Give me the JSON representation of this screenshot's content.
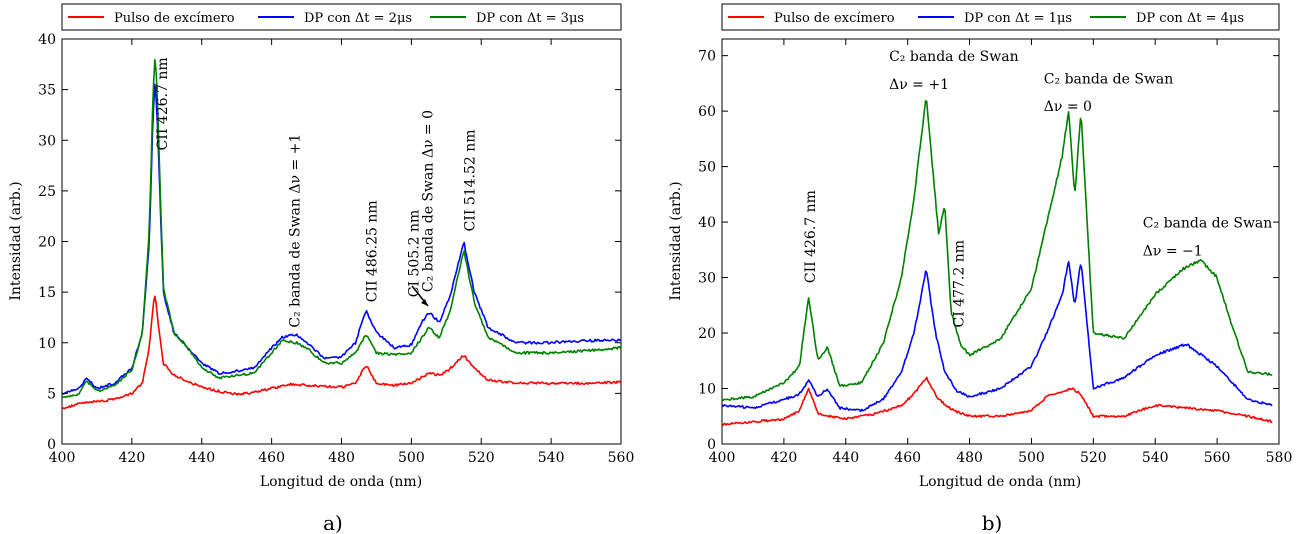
{
  "chart_data": [
    {
      "type": "line",
      "caption": "a)",
      "xlabel": "Longitud de onda (nm)",
      "ylabel": "Intensidad (arb.)",
      "xlim": [
        400,
        560
      ],
      "ylim": [
        0,
        40
      ],
      "xticks": [
        400,
        420,
        440,
        460,
        480,
        500,
        520,
        540,
        560
      ],
      "yticks": [
        0,
        5,
        10,
        15,
        20,
        25,
        30,
        35,
        40
      ],
      "legend_position": "top",
      "legend": [
        "Pulso de excímero",
        "DP con Δt = 2μs",
        "DP con Δt = 3μs"
      ],
      "annotations": [
        {
          "text": "CII 426.7 nm",
          "x": 430,
          "y": 29,
          "rotation": "vertical"
        },
        {
          "text": "C₂ banda de Swan Δν = +1",
          "x": 468,
          "y": 11.5,
          "rotation": "vertical"
        },
        {
          "text": "CII 486.25 nm",
          "x": 490,
          "y": 14,
          "rotation": "vertical"
        },
        {
          "text": "CI 505.2 nm",
          "x": 502,
          "y": 14.5,
          "rotation": "vertical"
        },
        {
          "text": "C₂ banda de Swan Δν = 0",
          "x": 506,
          "y": 15,
          "rotation": "vertical"
        },
        {
          "text": "CII 514.52 nm",
          "x": 518,
          "y": 21,
          "rotation": "vertical"
        }
      ],
      "series": [
        {
          "name": "Pulso de excímero",
          "color": "#ff0000",
          "x": [
            400,
            405,
            410,
            415,
            420,
            423,
            425,
            426,
            426.7,
            427.5,
            429,
            432,
            436,
            440,
            445,
            450,
            455,
            460,
            465,
            470,
            475,
            480,
            484,
            487,
            490,
            495,
            500,
            505,
            508,
            511,
            515,
            518,
            522,
            530,
            540,
            550,
            560
          ],
          "y": [
            3.5,
            4.0,
            4.2,
            4.4,
            5.0,
            6.0,
            9.5,
            13.5,
            14.7,
            12.0,
            8.0,
            6.8,
            6.2,
            5.6,
            5.2,
            4.9,
            5.1,
            5.5,
            5.9,
            5.8,
            5.7,
            5.6,
            6.0,
            7.8,
            6.0,
            5.8,
            6.0,
            7.0,
            6.8,
            7.4,
            8.8,
            7.5,
            6.3,
            6.0,
            6.0,
            6.0,
            6.1
          ]
        },
        {
          "name": "DP con Δt = 2μs",
          "color": "#0000ff",
          "x": [
            400,
            405,
            407,
            410,
            415,
            420,
            423,
            425,
            426,
            426.7,
            427.5,
            429,
            432,
            436,
            440,
            445,
            450,
            455,
            460,
            463,
            467,
            470,
            475,
            480,
            484,
            487,
            490,
            495,
            500,
            503,
            505,
            508,
            511,
            515,
            518,
            522,
            530,
            540,
            550,
            560
          ],
          "y": [
            5.0,
            5.5,
            6.5,
            5.5,
            6.0,
            7.5,
            11.0,
            20.0,
            32.0,
            36.0,
            30.0,
            15.0,
            11.0,
            9.5,
            8.0,
            7.0,
            7.2,
            7.5,
            9.5,
            10.5,
            10.8,
            10.0,
            8.5,
            8.6,
            10.0,
            13.2,
            11.0,
            9.5,
            9.8,
            12.0,
            13.0,
            12.0,
            14.5,
            20.0,
            15.0,
            11.5,
            10.0,
            10.0,
            10.2,
            10.3
          ]
        },
        {
          "name": "DP con Δt = 3μs",
          "color": "#008000",
          "x": [
            400,
            405,
            407,
            410,
            415,
            420,
            423,
            425,
            426,
            426.7,
            427.5,
            429,
            432,
            436,
            440,
            445,
            450,
            455,
            460,
            463,
            467,
            470,
            475,
            480,
            484,
            487,
            490,
            495,
            500,
            503,
            505,
            508,
            511,
            515,
            518,
            522,
            530,
            540,
            550,
            560
          ],
          "y": [
            4.5,
            5.0,
            6.2,
            5.2,
            5.8,
            7.3,
            11.0,
            21.0,
            34.0,
            38.8,
            32.0,
            15.5,
            11.0,
            9.5,
            7.5,
            6.5,
            6.8,
            7.0,
            9.0,
            10.2,
            10.0,
            9.5,
            8.0,
            8.0,
            9.0,
            10.8,
            9.0,
            8.8,
            9.0,
            10.5,
            11.5,
            10.5,
            13.0,
            19.2,
            14.0,
            10.5,
            9.0,
            9.0,
            9.2,
            9.5
          ]
        }
      ]
    },
    {
      "type": "line",
      "caption": "b)",
      "xlabel": "Longitud de onda (nm)",
      "ylabel": "Intensidad (arb.)",
      "xlim": [
        400,
        580
      ],
      "ylim": [
        0,
        73
      ],
      "xticks": [
        400,
        420,
        440,
        460,
        480,
        500,
        520,
        540,
        560,
        580
      ],
      "yticks": [
        0,
        10,
        20,
        30,
        40,
        50,
        60,
        70
      ],
      "legend_position": "top",
      "legend": [
        "Pulso de excímero",
        "DP con Δt = 1μs",
        "DP con Δt = 4μs"
      ],
      "annotations": [
        {
          "text": "CII 426.7 nm",
          "x": 430,
          "y": 29,
          "rotation": "vertical"
        },
        {
          "text": "C₂ banda de Swan",
          "x": 454,
          "y": 69,
          "rotation": "horizontal"
        },
        {
          "text": "Δν = +1",
          "x": 454,
          "y": 64,
          "rotation": "horizontal"
        },
        {
          "text": "CI 477.2 nm",
          "x": 478,
          "y": 21,
          "rotation": "vertical"
        },
        {
          "text": "C₂ banda de Swan",
          "x": 504,
          "y": 65,
          "rotation": "horizontal"
        },
        {
          "text": "Δν = 0",
          "x": 504,
          "y": 60,
          "rotation": "horizontal"
        },
        {
          "text": "C₂ banda de Swan",
          "x": 536,
          "y": 39,
          "rotation": "horizontal"
        },
        {
          "text": "Δν = −1",
          "x": 536,
          "y": 34,
          "rotation": "horizontal"
        }
      ],
      "series": [
        {
          "name": "Pulso de excímero",
          "color": "#ff0000",
          "x": [
            400,
            410,
            420,
            425,
            428,
            431,
            435,
            440,
            450,
            458,
            462,
            466,
            470,
            475,
            480,
            490,
            500,
            505,
            510,
            513,
            516,
            520,
            530,
            540,
            550,
            560,
            570,
            578
          ],
          "y": [
            3.5,
            4.0,
            4.5,
            6.0,
            10.0,
            5.5,
            5.0,
            4.5,
            5.5,
            7.0,
            9.0,
            12.0,
            8.0,
            6.0,
            5.0,
            5.0,
            6.0,
            8.5,
            9.5,
            10.0,
            9.0,
            5.0,
            5.0,
            7.0,
            6.5,
            6.0,
            5.0,
            4.0
          ]
        },
        {
          "name": "DP con Δt = 1μs",
          "color": "#0000ff",
          "x": [
            400,
            410,
            420,
            425,
            428,
            431,
            434,
            438,
            445,
            452,
            458,
            462,
            466,
            469,
            472,
            476,
            480,
            490,
            500,
            505,
            510,
            512,
            514,
            516,
            520,
            530,
            540,
            550,
            560,
            565,
            570,
            578
          ],
          "y": [
            7.0,
            6.5,
            8.0,
            9.0,
            11.5,
            8.5,
            10.0,
            6.5,
            6.0,
            8.0,
            13.0,
            20.0,
            31.5,
            20.0,
            13.0,
            9.5,
            8.5,
            10.0,
            14.0,
            20.0,
            27.0,
            33.0,
            25.0,
            33.0,
            10.0,
            12.0,
            16.0,
            18.0,
            14.0,
            11.0,
            8.0,
            7.0
          ]
        },
        {
          "name": "DP con Δt = 4μs",
          "color": "#008000",
          "x": [
            400,
            410,
            420,
            425,
            428,
            431,
            434,
            438,
            445,
            452,
            458,
            462,
            466,
            468,
            470,
            472,
            474,
            477,
            480,
            490,
            500,
            505,
            510,
            512,
            514,
            516,
            520,
            530,
            540,
            550,
            555,
            560,
            565,
            570,
            578
          ],
          "y": [
            8.0,
            8.5,
            11.0,
            14.0,
            26.5,
            15.0,
            17.5,
            10.5,
            11.0,
            18.0,
            30.0,
            44.0,
            63.0,
            50.0,
            38.0,
            43.0,
            24.0,
            18.0,
            16.0,
            19.0,
            28.0,
            40.0,
            52.0,
            60.0,
            45.0,
            60.0,
            20.0,
            19.0,
            27.0,
            32.0,
            33.0,
            30.0,
            21.0,
            13.0,
            12.5
          ]
        }
      ]
    }
  ]
}
